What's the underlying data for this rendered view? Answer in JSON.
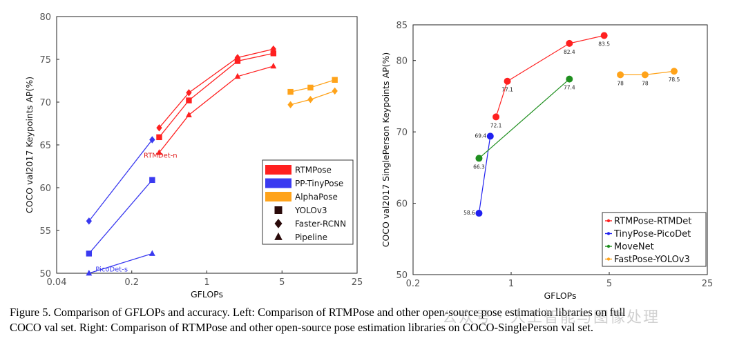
{
  "caption": {
    "line1": "Figure 5. Comparison of GFLOPs and accuracy.  Left: Comparison of RTMPose and other open-source pose estimation libraries on full",
    "line2": "COCO val set. Right: Comparison of RTMPose and other open-source pose estimation libraries on COCO-SinglePerson val set.",
    "watermark": "公众号 · 人工智能与图像处理"
  },
  "chart_data": [
    {
      "type": "line",
      "title": "",
      "xlabel": "GFLOPs",
      "ylabel": "COCO val2017 Keypoints AP(%)",
      "xscale": "log",
      "xlim": [
        0.04,
        25
      ],
      "ylim": [
        50,
        80
      ],
      "xticks": [
        {
          "v": 0.04,
          "label": "0.04"
        },
        {
          "v": 0.2,
          "label": "0.2"
        },
        {
          "v": 1,
          "label": "1"
        },
        {
          "v": 5,
          "label": "5"
        },
        {
          "v": 25,
          "label": "25"
        }
      ],
      "yticks": [
        50,
        55,
        60,
        65,
        70,
        75,
        80
      ],
      "grid": false,
      "legend": {
        "placement": "bottom-right",
        "entries": [
          {
            "kind": "color",
            "label": "RTMPose",
            "color": "#ff2020"
          },
          {
            "kind": "color",
            "label": "PP-TinyPose",
            "color": "#3a3af0"
          },
          {
            "kind": "color",
            "label": "AlphaPose",
            "color": "#ffa31a"
          },
          {
            "kind": "marker",
            "label": "YOLOv3",
            "marker": "square"
          },
          {
            "kind": "marker",
            "label": "Faster-RCNN",
            "marker": "diamond"
          },
          {
            "kind": "marker",
            "label": "Pipeline",
            "marker": "triangle"
          }
        ]
      },
      "annotations": [
        {
          "text": "RTMDet-n",
          "x": 0.37,
          "y": 63.5,
          "color": "#e02020"
        },
        {
          "text": "PicoDet-s",
          "x": 0.13,
          "y": 50.2,
          "color": "#3a3af0"
        }
      ],
      "series": [
        {
          "group": "RTMPose",
          "marker": "diamond",
          "color": "#ff2020",
          "x": [
            0.36,
            0.68,
            1.93,
            4.16
          ],
          "y": [
            67.0,
            71.1,
            75.2,
            76.2
          ]
        },
        {
          "group": "RTMPose",
          "marker": "square",
          "color": "#ff2020",
          "x": [
            0.36,
            0.68,
            1.93,
            4.16
          ],
          "y": [
            65.9,
            70.2,
            74.8,
            75.7
          ]
        },
        {
          "group": "RTMPose",
          "marker": "triangle",
          "color": "#ff2020",
          "x": [
            0.36,
            0.68,
            1.93,
            4.16
          ],
          "y": [
            64.1,
            68.5,
            73.0,
            74.2
          ]
        },
        {
          "group": "PP-TinyPose",
          "marker": "diamond",
          "color": "#3a3af0",
          "x": [
            0.08,
            0.31
          ],
          "y": [
            56.1,
            65.6
          ]
        },
        {
          "group": "PP-TinyPose",
          "marker": "square",
          "color": "#3a3af0",
          "x": [
            0.08,
            0.31
          ],
          "y": [
            52.3,
            60.9
          ]
        },
        {
          "group": "PP-TinyPose",
          "marker": "triangle",
          "color": "#3a3af0",
          "x": [
            0.08,
            0.31
          ],
          "y": [
            50.0,
            52.3
          ]
        },
        {
          "group": "AlphaPose",
          "marker": "square",
          "color": "#ffa31a",
          "x": [
            6.0,
            9.2,
            15.5
          ],
          "y": [
            71.2,
            71.7,
            72.6
          ]
        },
        {
          "group": "AlphaPose",
          "marker": "diamond",
          "color": "#ffa31a",
          "x": [
            6.0,
            9.2,
            15.5
          ],
          "y": [
            69.7,
            70.3,
            71.3
          ]
        }
      ]
    },
    {
      "type": "line",
      "title": "",
      "xlabel": "GFLOPs",
      "ylabel": "COCO val2017 SinglePerson Keypoints AP(%)",
      "xscale": "log",
      "xlim": [
        0.2,
        25
      ],
      "ylim": [
        50,
        85
      ],
      "xticks": [
        {
          "v": 0.2,
          "label": "0.2"
        },
        {
          "v": 1,
          "label": "1"
        },
        {
          "v": 5,
          "label": "5"
        },
        {
          "v": 25,
          "label": "25"
        }
      ],
      "yticks": [
        {
          "v": 50,
          "label": "50"
        },
        {
          "v": 60,
          "label": "60"
        },
        {
          "v": 70,
          "label": "70"
        },
        {
          "v": 80,
          "label": "80"
        },
        {
          "v": 85,
          "label": "85"
        }
      ],
      "grid": false,
      "legend": {
        "placement": "bottom-right",
        "entries": [
          {
            "label": "RTMPose-RTMDet",
            "color": "#ff2020"
          },
          {
            "label": "TinyPose-PicoDet",
            "color": "#2020f0"
          },
          {
            "label": "MoveNet",
            "color": "#1f8f1f"
          },
          {
            "label": "FastPose-YOLOv3",
            "color": "#ffa31a"
          }
        ]
      },
      "series": [
        {
          "name": "RTMPose-RTMDet",
          "color": "#ff2020",
          "x": [
            0.78,
            0.94,
            2.6,
            4.6
          ],
          "y": [
            72.1,
            77.1,
            82.4,
            83.5
          ],
          "labels": [
            "72.1",
            "77.1",
            "82.4",
            "83.5"
          ]
        },
        {
          "name": "TinyPose-PicoDet",
          "color": "#2020f0",
          "x": [
            0.59,
            0.71
          ],
          "y": [
            58.6,
            69.4
          ],
          "labels": [
            "58.6",
            "69.4"
          ]
        },
        {
          "name": "MoveNet",
          "color": "#1f8f1f",
          "x": [
            0.59,
            2.6
          ],
          "y": [
            66.3,
            77.4
          ],
          "labels": [
            "66.3",
            "77.4"
          ]
        },
        {
          "name": "FastPose-YOLOv3",
          "color": "#ffa31a",
          "x": [
            6.0,
            9.0,
            14.5
          ],
          "y": [
            78,
            78,
            78.5
          ],
          "labels": [
            "78",
            "78",
            "78.5"
          ]
        }
      ]
    }
  ]
}
